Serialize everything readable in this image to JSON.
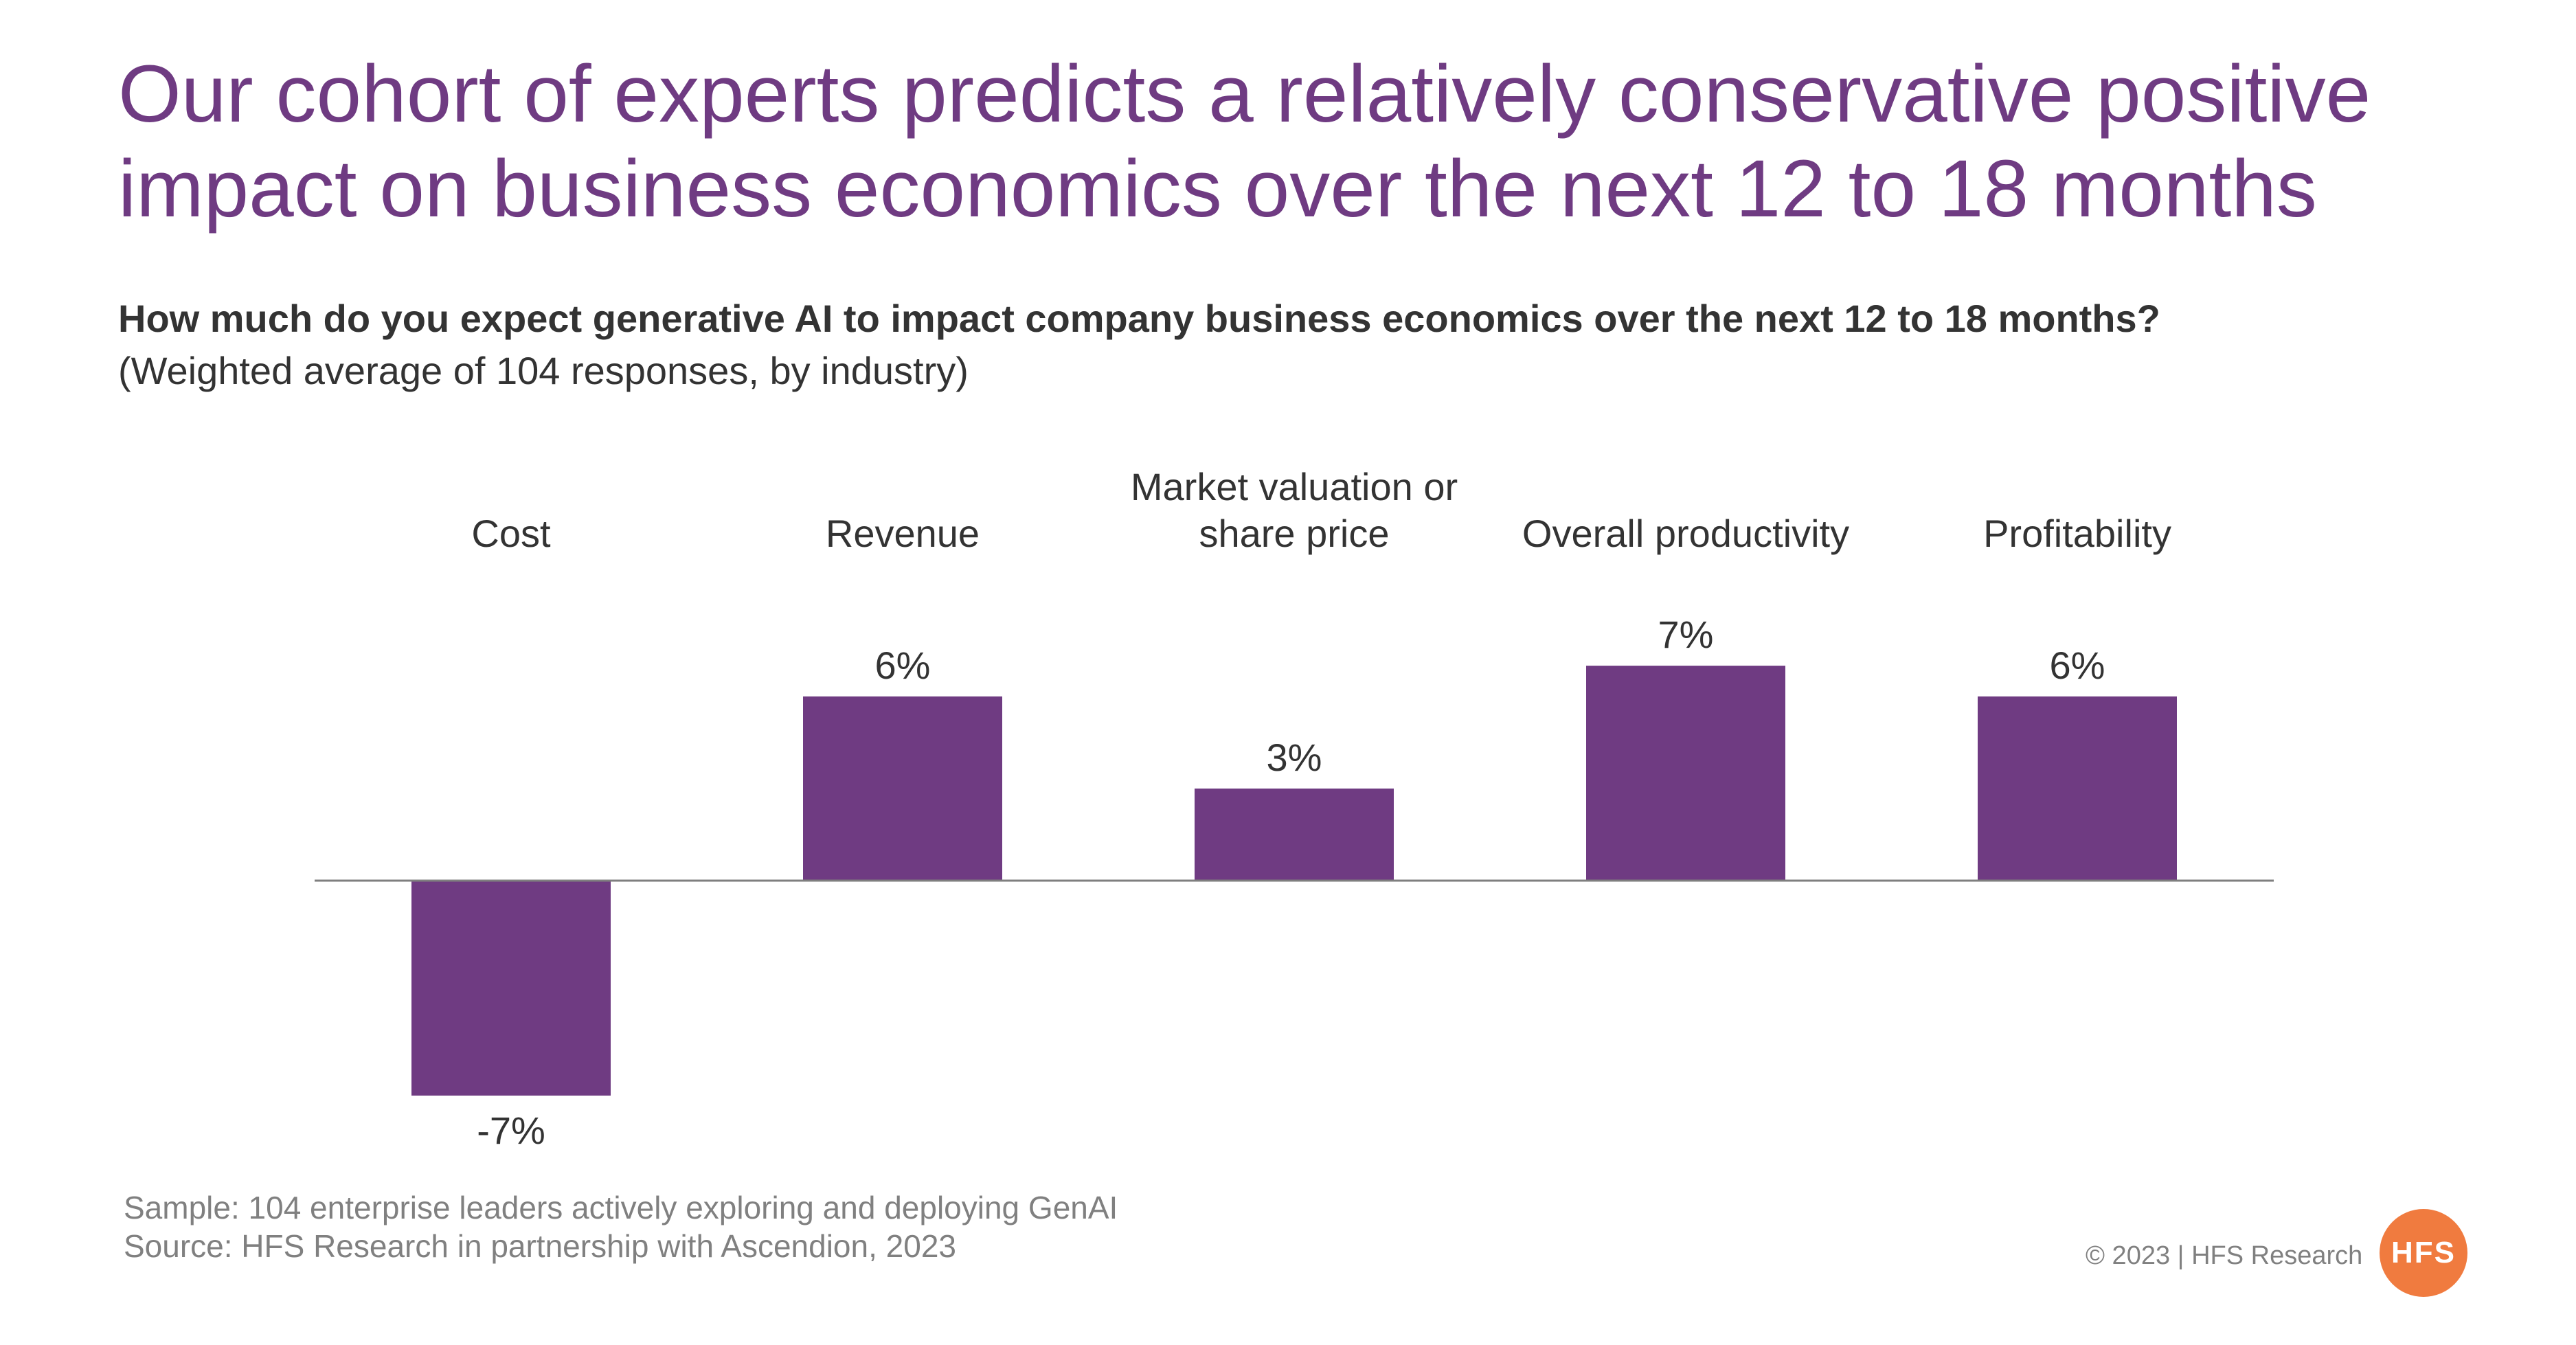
{
  "title": "Our cohort of experts predicts a relatively conservative positive impact on business economics over the next 12 to 18 months",
  "question": "How much do you expect generative AI to impact company business economics over the next 12 to 18 months?",
  "subquestion": "(Weighted average of 104 responses, by industry)",
  "chart_data": {
    "type": "bar",
    "categories": [
      [
        "Cost"
      ],
      [
        "Revenue"
      ],
      [
        "Market valuation or",
        "share price"
      ],
      [
        "Overall productivity"
      ],
      [
        "Profitability"
      ]
    ],
    "values": [
      -7,
      6,
      3,
      7,
      6
    ],
    "value_labels": [
      "-7%",
      "6%",
      "3%",
      "7%",
      "6%"
    ],
    "unit": "%",
    "ylim": [
      -7,
      7
    ],
    "grid": false,
    "legend": "none",
    "bar_color": "#6f3b82",
    "axis_color": "#7f7f7f"
  },
  "footer": {
    "sample": "Sample: 104 enterprise leaders actively exploring and deploying GenAI",
    "source": "Source: HFS Research in partnership with Ascendion, 2023",
    "copyright": "© 2023 | HFS Research",
    "logo_text": "HFS",
    "logo_color": "#f07b3f"
  },
  "colors": {
    "title": "#6f3b82",
    "text": "#333333",
    "muted": "#808080"
  }
}
